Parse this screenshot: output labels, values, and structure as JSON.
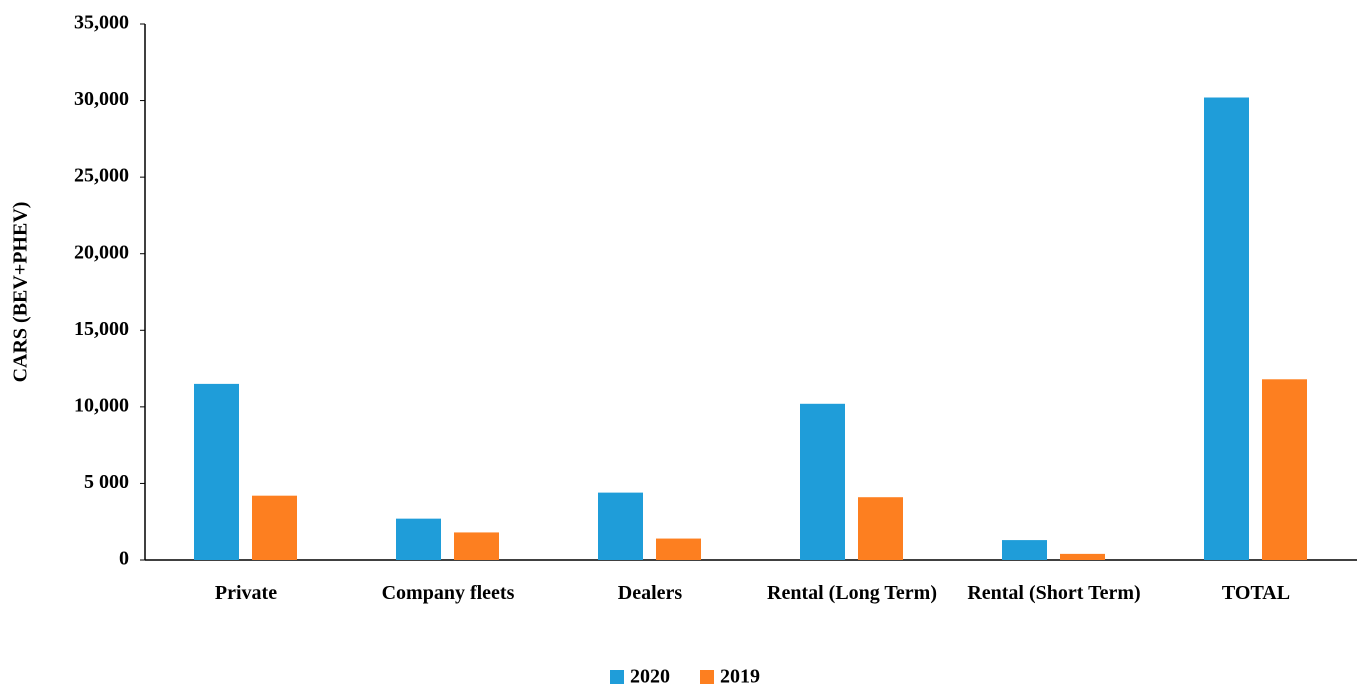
{
  "chart_data": {
    "type": "bar",
    "y_label": "CARS (BEV+PHEV)",
    "categories": [
      "Private",
      "Company fleets",
      "Dealers",
      "Rental (Long Term)",
      "Rental (Short Term)",
      "TOTAL"
    ],
    "series": [
      {
        "name": "2020",
        "color": "#1f9dd9",
        "values": [
          11500,
          2700,
          4400,
          10200,
          1300,
          30200
        ]
      },
      {
        "name": "2019",
        "color": "#fd7f20",
        "values": [
          4200,
          1800,
          1400,
          4100,
          400,
          11800
        ]
      }
    ],
    "ylim": [
      0,
      35000
    ],
    "yticks": [
      0,
      {
        "value": 5000,
        "label": "5 000"
      },
      {
        "value": 10000,
        "label": "10,000"
      },
      {
        "value": 15000,
        "label": "15,000"
      },
      {
        "value": 20000,
        "label": "20,000"
      },
      {
        "value": 25000,
        "label": "25,000"
      },
      {
        "value": 30000,
        "label": "30,000"
      },
      {
        "value": 35000,
        "label": "35,000"
      }
    ],
    "grid": false,
    "legend": "bottom"
  }
}
